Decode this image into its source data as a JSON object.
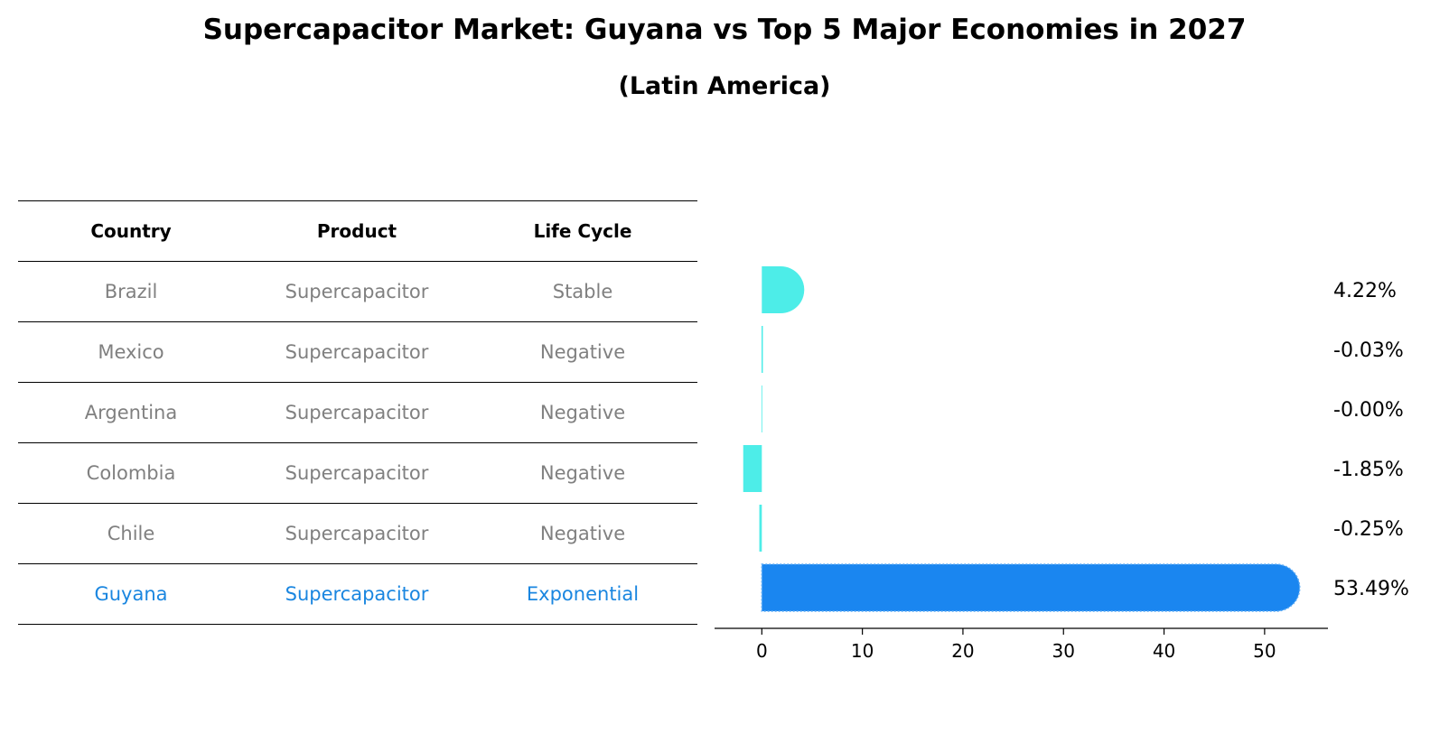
{
  "chart_data": {
    "type": "bar",
    "orientation": "horizontal",
    "title": "Supercapacitor Market: Guyana vs Top 5 Major Economies in 2027",
    "subtitle": "(Latin America)",
    "categories": [
      "Brazil",
      "Mexico",
      "Argentina",
      "Colombia",
      "Chile",
      "Guyana"
    ],
    "values": [
      4.22,
      -0.03,
      -0.0,
      -1.85,
      -0.25,
      53.49
    ],
    "value_labels": [
      "4.22%",
      "-0.03%",
      "-0.00%",
      "-1.85%",
      "-0.25%",
      "53.49%"
    ],
    "highlight": "Guyana",
    "colors": {
      "default": "#4dede8",
      "highlight": "#1a86f0"
    },
    "xlim": [
      -4.7,
      56.3
    ],
    "xticks": [
      0,
      10,
      20,
      30,
      40,
      50
    ],
    "xlabel": "",
    "ylabel": ""
  },
  "table": {
    "headers": [
      "Country",
      "Product",
      "Life Cycle"
    ],
    "rows": [
      [
        "Brazil",
        "Supercapacitor",
        "Stable"
      ],
      [
        "Mexico",
        "Supercapacitor",
        "Negative"
      ],
      [
        "Argentina",
        "Supercapacitor",
        "Negative"
      ],
      [
        "Colombia",
        "Supercapacitor",
        "Negative"
      ],
      [
        "Chile",
        "Supercapacitor",
        "Negative"
      ],
      [
        "Guyana",
        "Supercapacitor",
        "Exponential"
      ]
    ]
  }
}
